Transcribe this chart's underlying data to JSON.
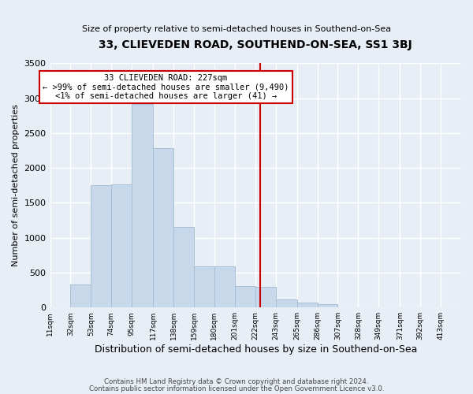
{
  "title": "33, CLIEVEDEN ROAD, SOUTHEND-ON-SEA, SS1 3BJ",
  "subtitle": "Size of property relative to semi-detached houses in Southend-on-Sea",
  "xlabel": "Distribution of semi-detached houses by size in Southend-on-Sea",
  "ylabel": "Number of semi-detached properties",
  "bar_color": "#c8d8eb",
  "bar_edge_color": "#a8bfd4",
  "background_color": "#e8eef5",
  "plot_bg_color": "#e8eef5",
  "grid_color": "#ffffff",
  "vline_x": 227,
  "vline_color": "#cc0000",
  "annotation_title": "33 CLIEVEDEN ROAD: 227sqm",
  "annotation_line1": "← >99% of semi-detached houses are smaller (9,490)",
  "annotation_line2": "<1% of semi-detached houses are larger (41) →",
  "annotation_box_color": "#cc0000",
  "bins": [
    11,
    32,
    53,
    74,
    95,
    117,
    138,
    159,
    180,
    201,
    222,
    243,
    265,
    286,
    307,
    328,
    349,
    371,
    392,
    413,
    434
  ],
  "counts": [
    5,
    330,
    1750,
    1760,
    2920,
    2280,
    1160,
    590,
    590,
    310,
    300,
    110,
    70,
    50,
    0,
    0,
    0,
    0,
    0,
    0
  ],
  "ylim": [
    0,
    3500
  ],
  "yticks": [
    0,
    500,
    1000,
    1500,
    2000,
    2500,
    3000,
    3500
  ],
  "footer1": "Contains HM Land Registry data © Crown copyright and database right 2024.",
  "footer2": "Contains public sector information licensed under the Open Government Licence v3.0."
}
